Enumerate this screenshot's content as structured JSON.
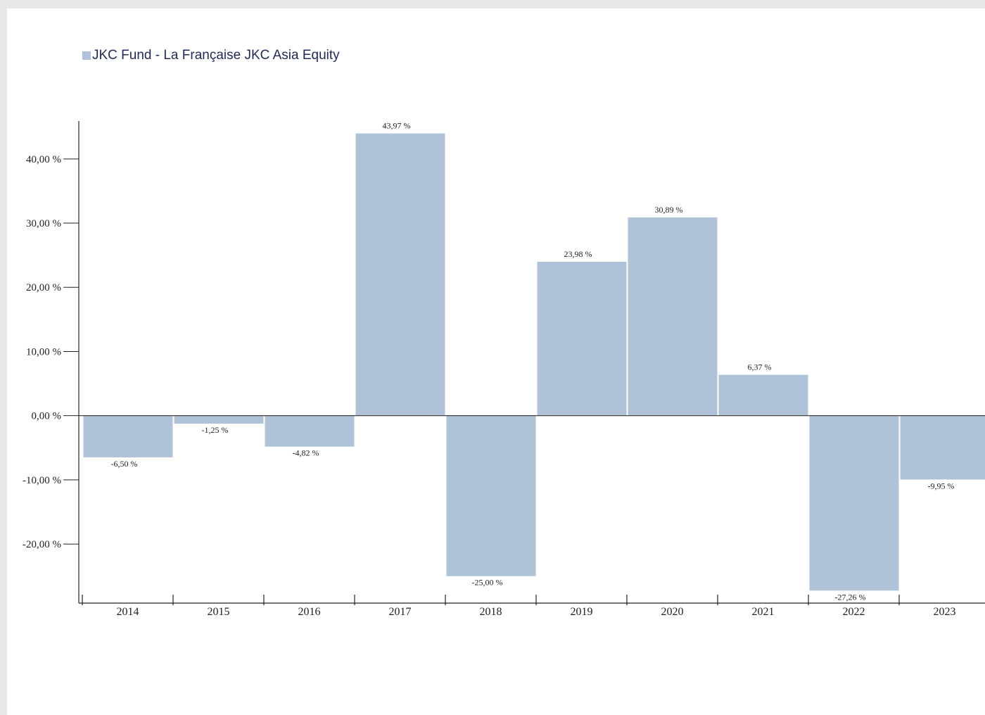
{
  "chart_data": {
    "type": "bar",
    "series": [
      {
        "name": "JKC Fund - La Française JKC Asia Equity",
        "color": "#b0c2d7",
        "values": [
          -6.5,
          -1.25,
          -4.82,
          43.97,
          -25.0,
          23.98,
          30.89,
          6.37,
          -27.26,
          -9.95
        ]
      }
    ],
    "categories": [
      "2014",
      "2015",
      "2016",
      "2017",
      "2018",
      "2019",
      "2020",
      "2021",
      "2022",
      "2023"
    ],
    "data_labels": [
      "-6,50 %",
      "-1,25 %",
      "-4,82 %",
      "43,97 %",
      "-25,00 %",
      "23,98 %",
      "30,89 %",
      "6,37 %",
      "-27,26 %",
      "-9,95 %"
    ],
    "y_ticks": [
      40,
      30,
      20,
      10,
      0,
      -10,
      -20
    ],
    "y_tick_labels": [
      "40,00 %",
      "30,00 %",
      "20,00 %",
      "10,00 %",
      "0,00 %",
      "-10,00 %",
      "-20,00 %"
    ],
    "ylim": [
      -29.2,
      45.9
    ],
    "legend_position": "top-left",
    "grid": false,
    "xlabel": "",
    "ylabel": ""
  }
}
